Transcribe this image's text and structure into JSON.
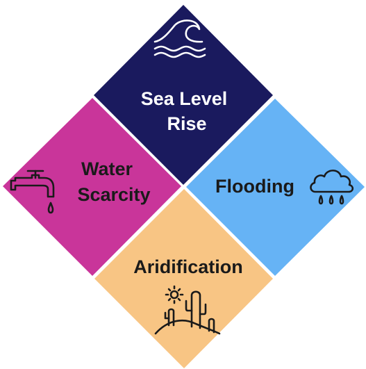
{
  "quadrants": [
    {
      "id": "top",
      "lines": [
        "Sea Level",
        "Rise"
      ],
      "color": "#1a1a5e",
      "text_color": "#ffffff",
      "icon": "wave-icon"
    },
    {
      "id": "left",
      "lines": [
        "Water",
        "Scarcity"
      ],
      "color": "#c9359a",
      "text_color": "#1a1a1a",
      "icon": "faucet-icon"
    },
    {
      "id": "right",
      "lines": [
        "Flooding"
      ],
      "color": "#66b3f5",
      "text_color": "#1a1a1a",
      "icon": "rain-cloud-icon"
    },
    {
      "id": "bottom",
      "lines": [
        "Aridification"
      ],
      "color": "#f8c584",
      "text_color": "#1a1a1a",
      "icon": "desert-cactus-icon"
    }
  ]
}
